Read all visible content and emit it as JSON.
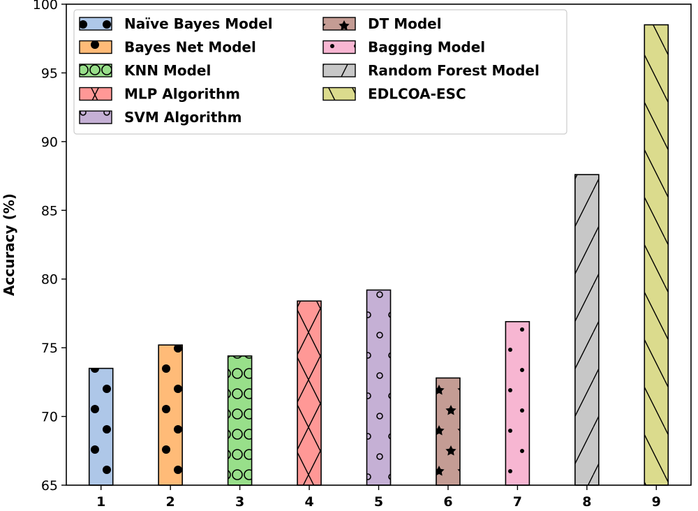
{
  "chart_data": {
    "type": "bar",
    "title": "",
    "xlabel": "",
    "ylabel": "Accuracy (%)",
    "ylim": [
      65,
      100
    ],
    "yticks": [
      65,
      70,
      75,
      80,
      85,
      90,
      95,
      100
    ],
    "categories": [
      "1",
      "2",
      "3",
      "4",
      "5",
      "6",
      "7",
      "8",
      "9"
    ],
    "values": [
      73.5,
      75.2,
      74.4,
      78.4,
      79.2,
      72.8,
      76.9,
      87.6,
      98.5
    ],
    "grid": false,
    "legend_position": "top-left",
    "series": [
      {
        "name": "Naïve Bayes Model",
        "value": 73.5,
        "color": "#aec7e8",
        "hatch": "dots-large"
      },
      {
        "name": "Bayes Net Model",
        "value": 75.2,
        "color": "#ffbb78",
        "hatch": "dots-large"
      },
      {
        "name": "KNN Model",
        "value": 74.4,
        "color": "#98df8a",
        "hatch": "circles"
      },
      {
        "name": "MLP Algorithm",
        "value": 78.4,
        "color": "#ff9896",
        "hatch": "cross"
      },
      {
        "name": "SVM Algorithm",
        "value": 79.2,
        "color": "#c5b0d5",
        "hatch": "small-circles"
      },
      {
        "name": "DT Model",
        "value": 72.8,
        "color": "#c49c94",
        "hatch": "stars"
      },
      {
        "name": "Bagging Model",
        "value": 76.9,
        "color": "#f7b6d2",
        "hatch": "small-dots"
      },
      {
        "name": "Random Forest Model",
        "value": 87.6,
        "color": "#c7c7c7",
        "hatch": "forward-diagonal"
      },
      {
        "name": "EDLCOA-ESC",
        "value": 98.5,
        "color": "#dbdb8d",
        "hatch": "back-diagonal"
      }
    ]
  }
}
